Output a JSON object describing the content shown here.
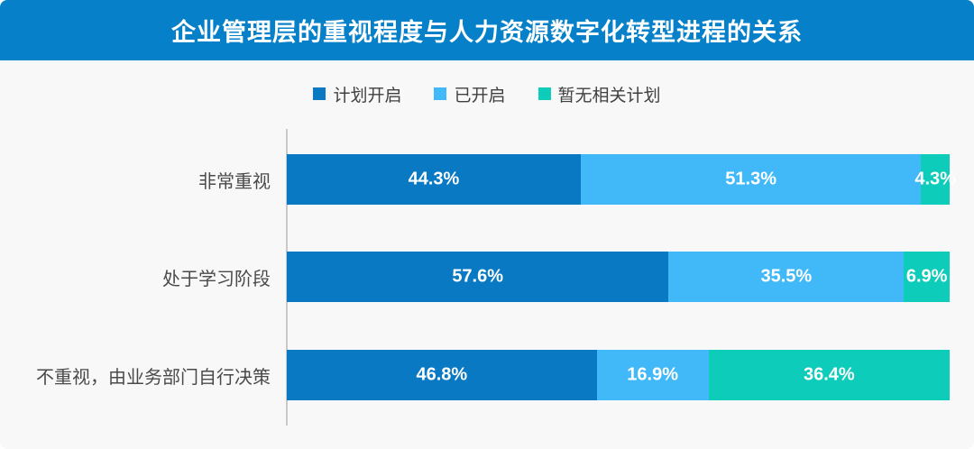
{
  "title": "企业管理层的重视程度与人力资源数字化转型进程的关系",
  "colors": {
    "banner": "#0681C9",
    "background": "#F8F8F8",
    "axis_line": "#C9C9C9",
    "category_label": "#4A4A4A",
    "legend_label": "#404040",
    "value_label": "#FFFFFF"
  },
  "chart_data": {
    "type": "bar",
    "orientation": "horizontal",
    "stacked": true,
    "unit": "%",
    "title": "企业管理层的重视程度与人力资源数字化转型进程的关系",
    "legend_position": "top-center",
    "grid": false,
    "value_label_format": "{value}%",
    "categories": [
      "非常重视",
      "处于学习阶段",
      "不重视，由业务部门自行决策"
    ],
    "series": [
      {
        "name": "计划开启",
        "color": "#0879C2",
        "values": [
          44.3,
          57.6,
          46.8
        ]
      },
      {
        "name": "已开启",
        "color": "#41B8F7",
        "values": [
          51.3,
          35.5,
          16.9
        ]
      },
      {
        "name": "暂无相关计划",
        "color": "#0DCCBA",
        "values": [
          4.3,
          6.9,
          36.4
        ]
      }
    ]
  }
}
